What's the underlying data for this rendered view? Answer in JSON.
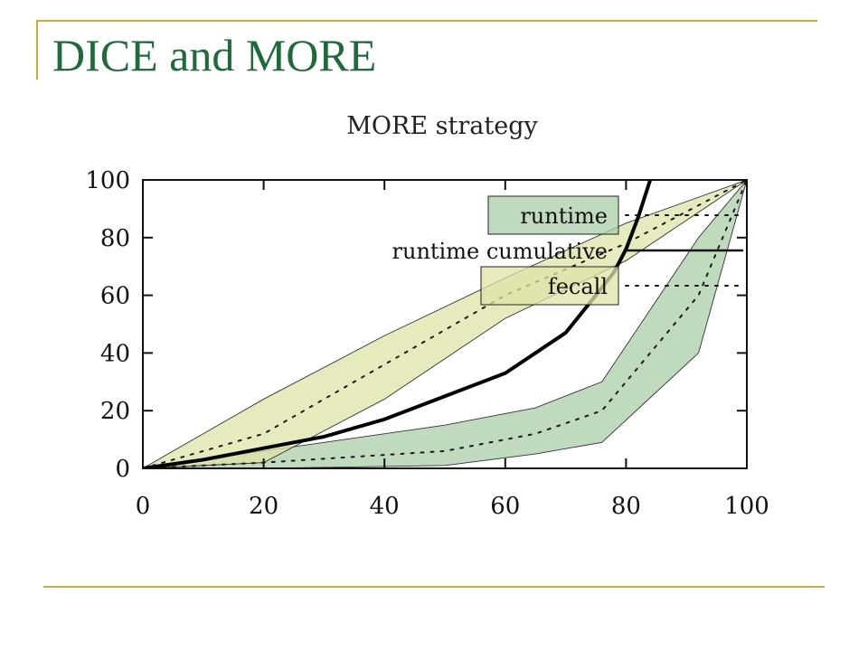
{
  "slide": {
    "title": "DICE and MORE",
    "accent_color": "#c8a93c",
    "title_color": "#1e6a3a"
  },
  "chart_data": {
    "type": "line",
    "title": "MORE strategy",
    "xlabel": "",
    "ylabel": "",
    "xlim": [
      0,
      100
    ],
    "ylim": [
      0,
      100
    ],
    "xticks": [
      0,
      20,
      40,
      60,
      80,
      100
    ],
    "yticks": [
      0,
      20,
      40,
      60,
      80,
      100
    ],
    "grid": false,
    "legend_position": "top-right",
    "series": [
      {
        "name": "runtime",
        "style": "dotted",
        "color": "#8fbf8f",
        "band_color": "#a9cea6",
        "x": [
          0,
          20,
          50,
          65,
          76,
          92,
          100
        ],
        "y": [
          0,
          2,
          6,
          12,
          20,
          60,
          100
        ],
        "upper": [
          0,
          6,
          15,
          21,
          30,
          80,
          100
        ],
        "lower": [
          0,
          0,
          1,
          5,
          9,
          40,
          100
        ]
      },
      {
        "name": "runtime cumulative",
        "style": "solid",
        "color": "#000000",
        "x": [
          0,
          10,
          20,
          30,
          40,
          50,
          60,
          65,
          70,
          75,
          78,
          80,
          82,
          84
        ],
        "y": [
          0,
          3,
          7,
          11,
          17,
          25,
          33,
          40,
          47,
          60,
          68,
          76,
          87,
          100
        ]
      },
      {
        "name": "fecall",
        "style": "dotted",
        "color": "#c9c97a",
        "band_color": "#dfe3a6",
        "x": [
          0,
          20,
          40,
          60,
          80,
          100
        ],
        "y": [
          0,
          12,
          36,
          60,
          78,
          100
        ],
        "upper": [
          0,
          24,
          46,
          66,
          85,
          100
        ],
        "lower": [
          0,
          2,
          24,
          52,
          72,
          100
        ]
      }
    ]
  }
}
